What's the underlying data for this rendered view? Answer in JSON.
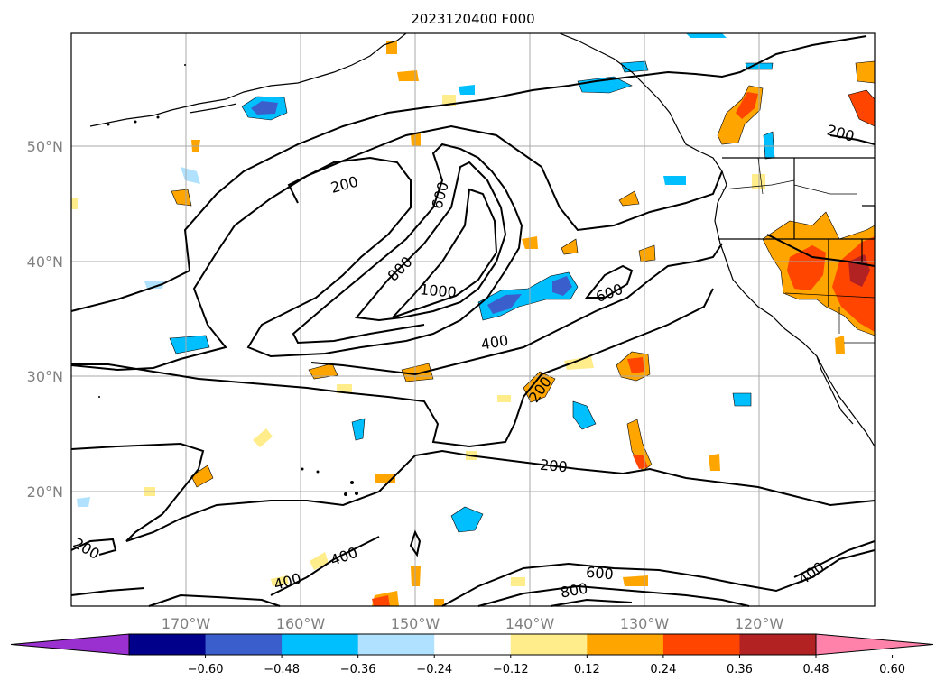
{
  "title": "2023120400 F000",
  "lat_labels": [
    "50°N",
    "40°N",
    "30°N",
    "20°N"
  ],
  "lon_labels": [
    "170°W",
    "160°W",
    "150°W",
    "140°W",
    "130°W",
    "120°W"
  ],
  "contour_labels": [
    "200",
    "600",
    "800",
    "1000",
    "600",
    "400",
    "200",
    "200",
    "200",
    "400",
    "400",
    "600",
    "800",
    "400",
    "200"
  ],
  "colorbar": {
    "ticks": [
      "−0.60",
      "−0.48",
      "−0.36",
      "−0.24",
      "−0.12",
      "0.12",
      "0.24",
      "0.36",
      "0.48",
      "0.60"
    ],
    "colors": [
      "#9b30d0",
      "#00008b",
      "#3a5fcd",
      "#00bfff",
      "#b0e2ff",
      "#ffffff",
      "#ffec8b",
      "#ffa500",
      "#ff4500",
      "#b22222",
      "#ff82ab"
    ]
  },
  "shading_colors": {
    "light_blue": "#b0e2ff",
    "blue": "#00bfff",
    "dark_blue": "#3a5fcd",
    "yellow": "#ffec8b",
    "orange": "#ffa500",
    "red": "#ff4500",
    "dark_red": "#b22222"
  }
}
